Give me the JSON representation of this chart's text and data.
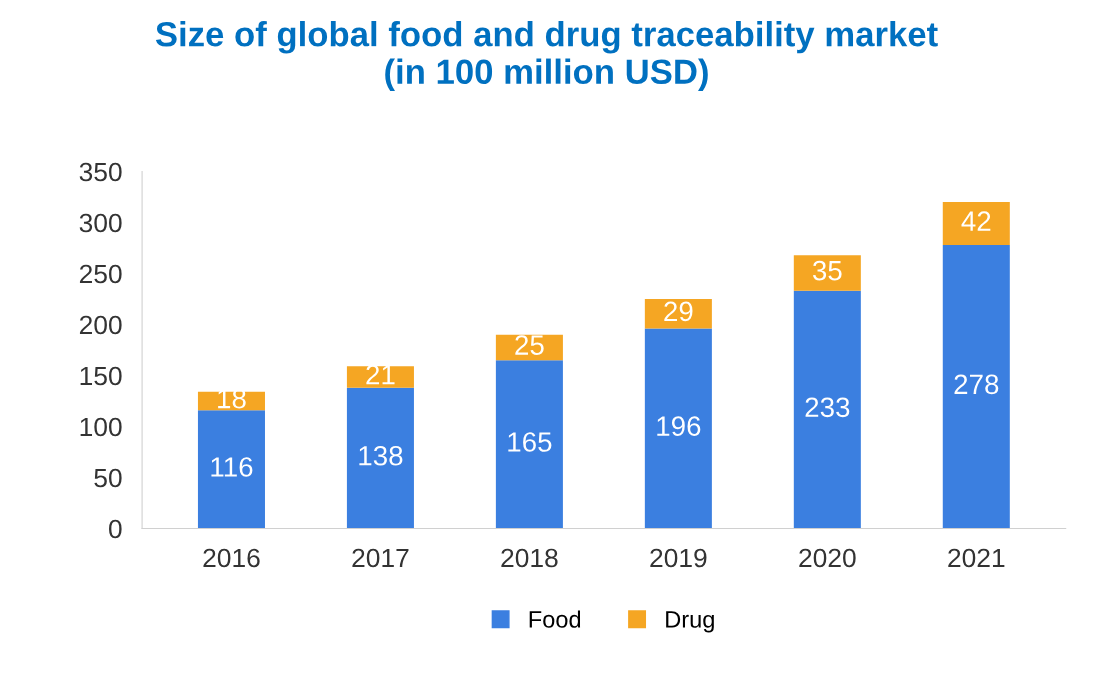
{
  "chart_data": {
    "type": "bar",
    "title": "Size of global food and drug traceability market\n(in 100 million USD)",
    "categories": [
      "2016",
      "2017",
      "2018",
      "2019",
      "2020",
      "2021"
    ],
    "stacked": true,
    "data_labels": true,
    "legend": "bottom",
    "grid": false,
    "ylim": [
      0,
      350
    ],
    "yticks": [
      0,
      50,
      100,
      150,
      200,
      250,
      300,
      350
    ],
    "series": [
      {
        "name": "Food",
        "color": "#3b7fe0",
        "values": [
          116,
          138,
          165,
          196,
          233,
          278
        ]
      },
      {
        "name": "Drug",
        "color": "#f5a623",
        "values": [
          18,
          21,
          25,
          29,
          35,
          42
        ]
      }
    ]
  }
}
